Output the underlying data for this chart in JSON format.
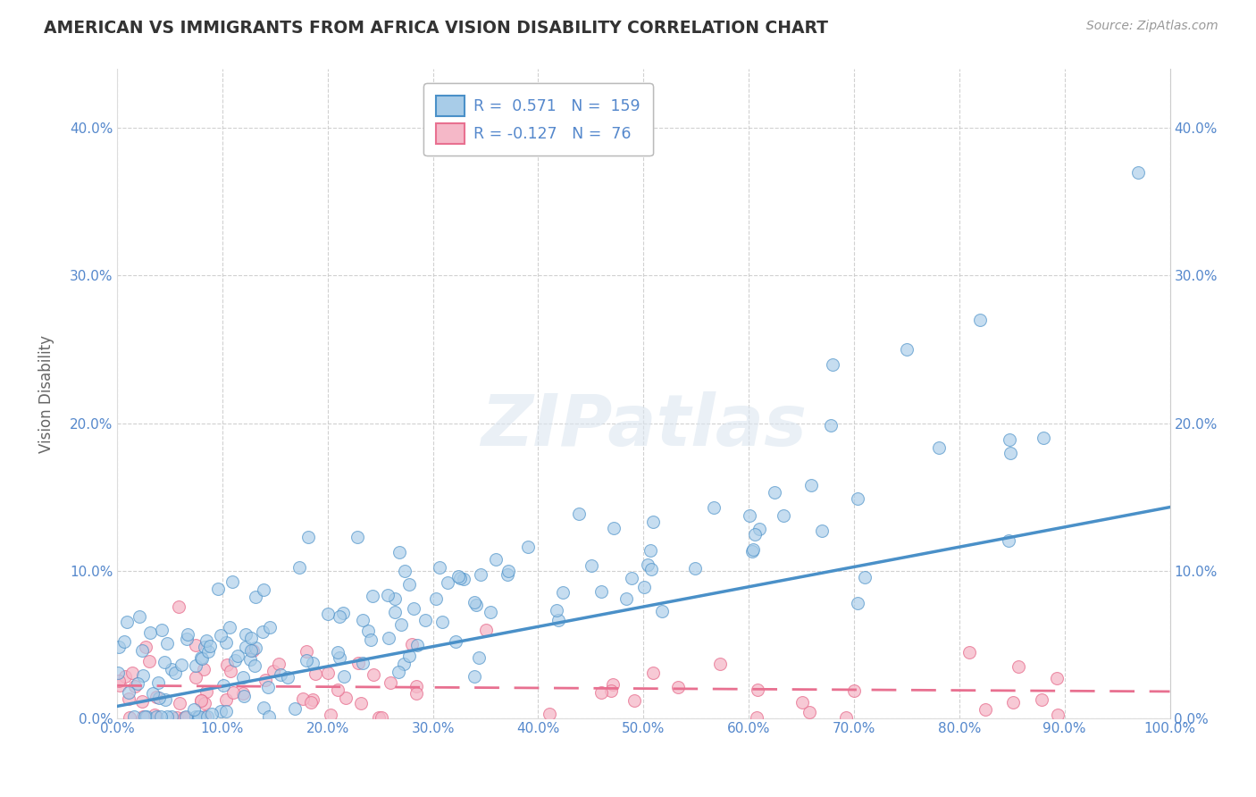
{
  "title": "AMERICAN VS IMMIGRANTS FROM AFRICA VISION DISABILITY CORRELATION CHART",
  "source": "Source: ZipAtlas.com",
  "ylabel": "Vision Disability",
  "r_american": 0.571,
  "n_american": 159,
  "r_africa": -0.127,
  "n_africa": 76,
  "xlim": [
    0.0,
    1.0
  ],
  "ylim": [
    0.0,
    0.44
  ],
  "yticks": [
    0.0,
    0.1,
    0.2,
    0.3,
    0.4
  ],
  "xticks": [
    0.0,
    0.1,
    0.2,
    0.3,
    0.4,
    0.5,
    0.6,
    0.7,
    0.8,
    0.9,
    1.0
  ],
  "color_american": "#a8cce8",
  "color_africa": "#f5b8c8",
  "line_color_american": "#4a90c8",
  "line_color_africa": "#e87090",
  "background_color": "#ffffff",
  "grid_color": "#cccccc",
  "watermark": "ZIPatlas",
  "seed": 12345,
  "tick_color": "#5588cc",
  "title_color": "#333333",
  "source_color": "#999999",
  "ylabel_color": "#666666"
}
